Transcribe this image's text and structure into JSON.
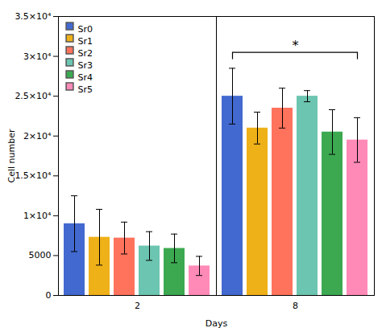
{
  "chart_data": {
    "type": "bar",
    "xlabel": "Days",
    "ylabel": "Cell number",
    "categories": [
      "2",
      "8"
    ],
    "series": [
      {
        "name": "Sr0",
        "values": [
          9000,
          25000
        ],
        "errors": [
          3500,
          3500
        ]
      },
      {
        "name": "Sr1",
        "values": [
          7300,
          21000
        ],
        "errors": [
          3500,
          2000
        ]
      },
      {
        "name": "Sr2",
        "values": [
          7200,
          23500
        ],
        "errors": [
          2000,
          2500
        ]
      },
      {
        "name": "Sr3",
        "values": [
          6200,
          25000
        ],
        "errors": [
          1800,
          700
        ]
      },
      {
        "name": "Sr4",
        "values": [
          5900,
          20500
        ],
        "errors": [
          1800,
          2800
        ]
      },
      {
        "name": "Sr5",
        "values": [
          3700,
          19500
        ],
        "errors": [
          1200,
          2800
        ]
      }
    ],
    "ylim": [
      0,
      35000
    ],
    "yticks": [
      0,
      5000,
      {
        "value": 10000,
        "label": "1×10⁴"
      },
      {
        "value": 15000,
        "label": "1.5×10⁴"
      },
      {
        "value": 20000,
        "label": "2×10⁴"
      },
      {
        "value": 25000,
        "label": "2.5×10⁴"
      },
      {
        "value": 30000,
        "label": "3×10⁴"
      },
      {
        "value": 35000,
        "label": "3.5×10⁴"
      }
    ],
    "grid": false,
    "legend": "upper left",
    "annotations": [
      {
        "text": "*",
        "category": "8",
        "from": "Sr0",
        "to": "Sr5",
        "y": 30500
      }
    ]
  }
}
